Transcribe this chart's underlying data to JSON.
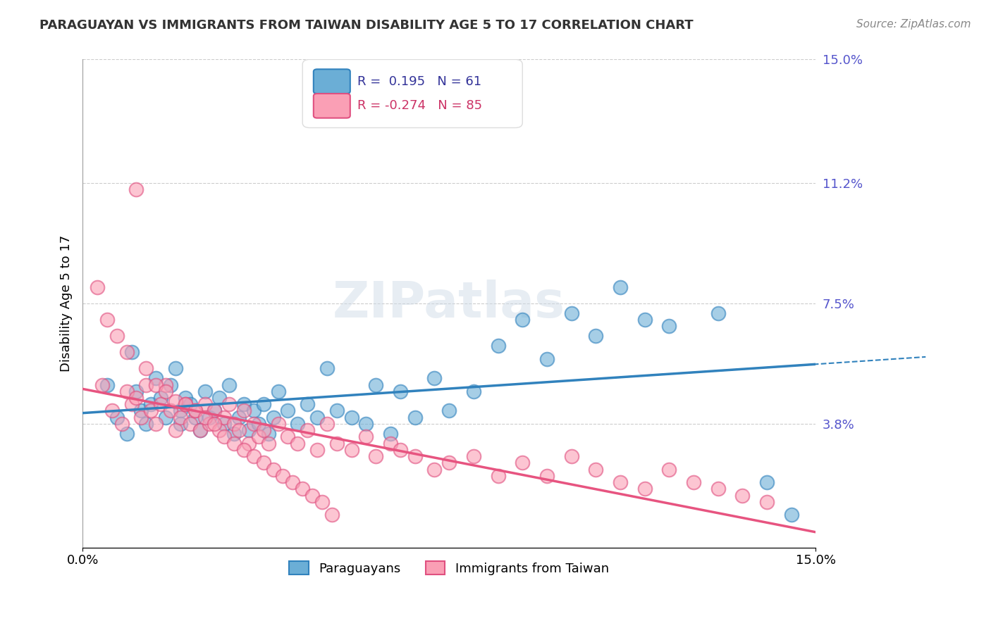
{
  "title": "PARAGUAYAN VS IMMIGRANTS FROM TAIWAN DISABILITY AGE 5 TO 17 CORRELATION CHART",
  "source": "Source: ZipAtlas.com",
  "xlabel_bottom": "",
  "ylabel": "Disability Age 5 to 17",
  "xmin": 0.0,
  "xmax": 0.15,
  "ymin": 0.0,
  "ymax": 0.15,
  "xtick_labels": [
    "0.0%",
    "15.0%"
  ],
  "ytick_labels_right": [
    "15.0%",
    "11.2%",
    "7.5%",
    "3.8%"
  ],
  "ytick_positions_right": [
    0.15,
    0.112,
    0.075,
    0.038
  ],
  "r_paraguayan": 0.195,
  "n_paraguayan": 61,
  "r_taiwan": -0.274,
  "n_taiwan": 85,
  "legend_label_1": "Paraguayans",
  "legend_label_2": "Immigrants from Taiwan",
  "color_blue": "#6baed6",
  "color_pink": "#fa9fb5",
  "color_blue_line": "#3182bd",
  "color_pink_line": "#e75480",
  "watermark": "ZIPatlas",
  "blue_scatter_x": [
    0.005,
    0.007,
    0.009,
    0.01,
    0.011,
    0.012,
    0.013,
    0.014,
    0.015,
    0.016,
    0.017,
    0.018,
    0.019,
    0.02,
    0.02,
    0.021,
    0.022,
    0.023,
    0.024,
    0.025,
    0.026,
    0.027,
    0.028,
    0.029,
    0.03,
    0.031,
    0.032,
    0.033,
    0.034,
    0.035,
    0.036,
    0.037,
    0.038,
    0.039,
    0.04,
    0.042,
    0.044,
    0.046,
    0.048,
    0.05,
    0.052,
    0.055,
    0.058,
    0.06,
    0.063,
    0.065,
    0.068,
    0.072,
    0.075,
    0.08,
    0.085,
    0.09,
    0.095,
    0.1,
    0.105,
    0.11,
    0.115,
    0.12,
    0.13,
    0.14,
    0.145
  ],
  "blue_scatter_y": [
    0.05,
    0.04,
    0.035,
    0.06,
    0.048,
    0.042,
    0.038,
    0.044,
    0.052,
    0.046,
    0.04,
    0.05,
    0.055,
    0.042,
    0.038,
    0.046,
    0.044,
    0.04,
    0.036,
    0.048,
    0.04,
    0.042,
    0.046,
    0.038,
    0.05,
    0.035,
    0.04,
    0.044,
    0.036,
    0.042,
    0.038,
    0.044,
    0.035,
    0.04,
    0.048,
    0.042,
    0.038,
    0.044,
    0.04,
    0.055,
    0.042,
    0.04,
    0.038,
    0.05,
    0.035,
    0.048,
    0.04,
    0.052,
    0.042,
    0.048,
    0.062,
    0.07,
    0.058,
    0.072,
    0.065,
    0.08,
    0.07,
    0.068,
    0.072,
    0.02,
    0.01
  ],
  "pink_scatter_x": [
    0.004,
    0.006,
    0.008,
    0.009,
    0.01,
    0.011,
    0.012,
    0.013,
    0.014,
    0.015,
    0.016,
    0.017,
    0.018,
    0.019,
    0.02,
    0.021,
    0.022,
    0.023,
    0.024,
    0.025,
    0.026,
    0.027,
    0.028,
    0.029,
    0.03,
    0.031,
    0.032,
    0.033,
    0.034,
    0.035,
    0.036,
    0.037,
    0.038,
    0.04,
    0.042,
    0.044,
    0.046,
    0.048,
    0.05,
    0.052,
    0.055,
    0.058,
    0.06,
    0.063,
    0.065,
    0.068,
    0.072,
    0.075,
    0.08,
    0.085,
    0.09,
    0.095,
    0.1,
    0.105,
    0.11,
    0.115,
    0.12,
    0.125,
    0.13,
    0.135,
    0.14,
    0.003,
    0.005,
    0.007,
    0.009,
    0.011,
    0.013,
    0.015,
    0.017,
    0.019,
    0.021,
    0.023,
    0.025,
    0.027,
    0.029,
    0.031,
    0.033,
    0.035,
    0.037,
    0.039,
    0.041,
    0.043,
    0.045,
    0.047,
    0.049,
    0.051
  ],
  "pink_scatter_y": [
    0.05,
    0.042,
    0.038,
    0.048,
    0.044,
    0.046,
    0.04,
    0.05,
    0.042,
    0.038,
    0.044,
    0.05,
    0.042,
    0.036,
    0.04,
    0.044,
    0.038,
    0.042,
    0.036,
    0.044,
    0.038,
    0.042,
    0.036,
    0.04,
    0.044,
    0.038,
    0.036,
    0.042,
    0.032,
    0.038,
    0.034,
    0.036,
    0.032,
    0.038,
    0.034,
    0.032,
    0.036,
    0.03,
    0.038,
    0.032,
    0.03,
    0.034,
    0.028,
    0.032,
    0.03,
    0.028,
    0.024,
    0.026,
    0.028,
    0.022,
    0.026,
    0.022,
    0.028,
    0.024,
    0.02,
    0.018,
    0.024,
    0.02,
    0.018,
    0.016,
    0.014,
    0.08,
    0.07,
    0.065,
    0.06,
    0.11,
    0.055,
    0.05,
    0.048,
    0.045,
    0.044,
    0.042,
    0.04,
    0.038,
    0.034,
    0.032,
    0.03,
    0.028,
    0.026,
    0.024,
    0.022,
    0.02,
    0.018,
    0.016,
    0.014,
    0.01
  ]
}
